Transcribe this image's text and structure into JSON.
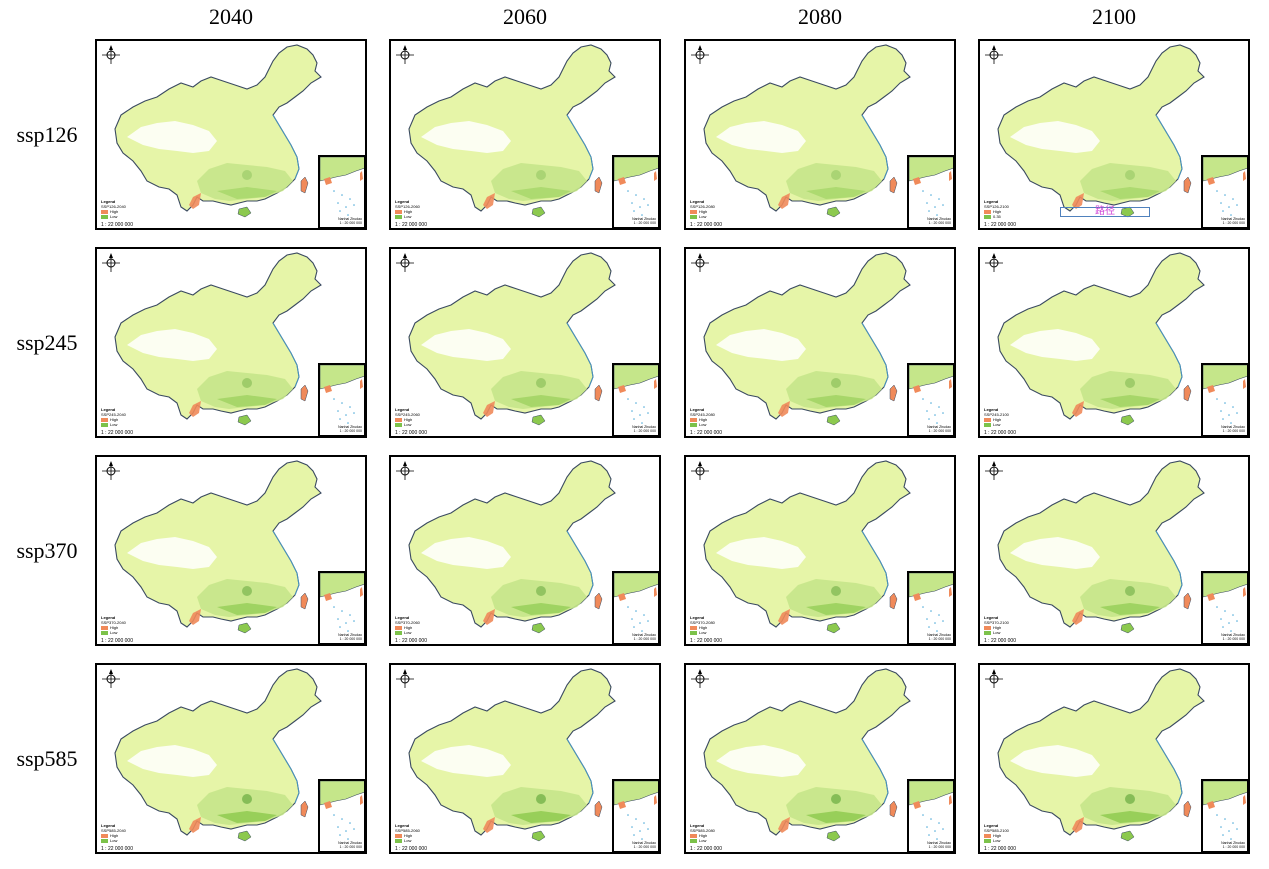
{
  "columns": [
    "2040",
    "2060",
    "2080",
    "2100"
  ],
  "rows": [
    "ssp126",
    "ssp245",
    "ssp370",
    "ssp585"
  ],
  "panels": [
    [
      {
        "legend_title": "Legend",
        "layer": "SSP126-2040",
        "high": "High",
        "low": "Low",
        "scale": "1 : 22 000 000",
        "inset_caption": "Nanhai Zhudao",
        "inset_scale": "1 : 20 000 000"
      },
      {
        "legend_title": "Legend",
        "layer": "SSP126-2060",
        "high": "High",
        "low": "Low",
        "scale": "1 : 22 000 000",
        "inset_caption": "Nanhai Zhudao",
        "inset_scale": "1 : 20 000 000"
      },
      {
        "legend_title": "Legend",
        "layer": "SSP126-2080",
        "high": "High",
        "low": "Low",
        "scale": "1 : 22 000 000",
        "inset_caption": "Nanhai Zhudao",
        "inset_scale": "1 : 20 000 000"
      },
      {
        "legend_title": "Legend",
        "layer": "SSP126-2100",
        "high": "High",
        "low": "0.35",
        "scale": "1 : 22 000 000",
        "inset_caption": "Nanhai Zhudao",
        "inset_scale": "1 : 20 000 000",
        "annotation": "路径"
      }
    ],
    [
      {
        "legend_title": "Legend",
        "layer": "SSP245-2040",
        "high": "High",
        "low": "Low",
        "scale": "1 : 22 000 000",
        "inset_caption": "Nanhai Zhudao",
        "inset_scale": "1 : 20 000 000"
      },
      {
        "legend_title": "Legend",
        "layer": "SSP245-2060",
        "high": "High",
        "low": "Low",
        "scale": "1 : 22 000 000",
        "inset_caption": "Nanhai Zhudao",
        "inset_scale": "1 : 20 000 000"
      },
      {
        "legend_title": "Legend",
        "layer": "SSP245-2080",
        "high": "High",
        "low": "Low",
        "scale": "1 : 22 000 000",
        "inset_caption": "Nanhai Zhudao",
        "inset_scale": "1 : 20 000 000"
      },
      {
        "legend_title": "Legend",
        "layer": "SSP245-2100",
        "high": "High",
        "low": "Low",
        "scale": "1 : 22 000 000",
        "inset_caption": "Nanhai Zhudao",
        "inset_scale": "1 : 20 000 000"
      }
    ],
    [
      {
        "legend_title": "Legend",
        "layer": "SSP370-2040",
        "high": "High",
        "low": "Low",
        "scale": "1 : 22 000 000",
        "inset_caption": "Nanhai Zhudao",
        "inset_scale": "1 : 20 000 000"
      },
      {
        "legend_title": "Legend",
        "layer": "SSP370-2060",
        "high": "High",
        "low": "Low",
        "scale": "1 : 22 000 000",
        "inset_caption": "Nanhai Zhudao",
        "inset_scale": "1 : 20 000 000"
      },
      {
        "legend_title": "Legend",
        "layer": "SSP370-2080",
        "high": "High",
        "low": "Low",
        "scale": "1 : 22 000 000",
        "inset_caption": "Nanhai Zhudao",
        "inset_scale": "1 : 20 000 000"
      },
      {
        "legend_title": "Legend",
        "layer": "SSP370-2100",
        "high": "High",
        "low": "Low",
        "scale": "1 : 22 000 000",
        "inset_caption": "Nanhai Zhudao",
        "inset_scale": "1 : 20 000 000"
      }
    ],
    [
      {
        "legend_title": "Legend",
        "layer": "SSP585-2040",
        "high": "High",
        "low": "Low",
        "scale": "1 : 22 000 000",
        "inset_caption": "Nanhai Zhudao",
        "inset_scale": "1 : 20 000 000"
      },
      {
        "legend_title": "Legend",
        "layer": "SSP585-2060",
        "high": "High",
        "low": "Low",
        "scale": "1 : 22 000 000",
        "inset_caption": "Nanhai Zhudao",
        "inset_scale": "1 : 20 000 000"
      },
      {
        "legend_title": "Legend",
        "layer": "SSP585-2080",
        "high": "High",
        "low": "Low",
        "scale": "1 : 22 000 000",
        "inset_caption": "Nanhai Zhudao",
        "inset_scale": "1 : 20 000 000"
      },
      {
        "legend_title": "Legend",
        "layer": "SSP585-2100",
        "high": "High",
        "low": "Low",
        "scale": "1 : 22 000 000",
        "inset_caption": "Nanhai Zhudao",
        "inset_scale": "1 : 20 000 000"
      }
    ]
  ],
  "colors": {
    "land_base": "#e6f5a8",
    "land_mid": "#c5e68a",
    "land_green": "#8cc94e",
    "land_dark": "#4f9a2c",
    "plateau": "#ffffff",
    "high": "#f08a5a",
    "low": "#7cc24a",
    "border": "#3a4a60",
    "coast": "#4aa8d8",
    "annotation": "#d046d8"
  }
}
